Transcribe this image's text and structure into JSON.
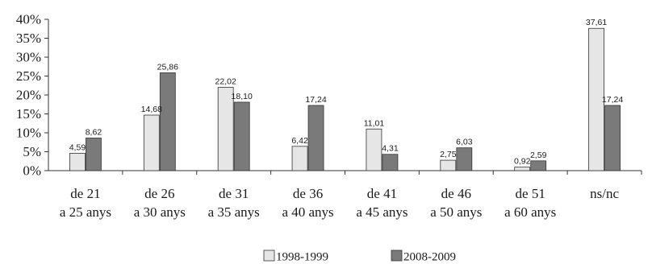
{
  "chart_data": {
    "type": "bar",
    "categories": [
      [
        "de 21",
        "a 25 anys"
      ],
      [
        "de 26",
        "a 30 anys"
      ],
      [
        "de 31",
        "a 35 anys"
      ],
      [
        "de 36",
        "a 40 anys"
      ],
      [
        "de 41",
        "a 45 anys"
      ],
      [
        "de 46",
        "a 50 anys"
      ],
      [
        "de 51",
        "a 60 anys"
      ],
      [
        "ns/nc"
      ]
    ],
    "series": [
      {
        "name": "1998-1999",
        "color": "#e6e6e6",
        "values": [
          4.59,
          14.68,
          22.02,
          6.42,
          11.01,
          2.75,
          0.92,
          37.61
        ],
        "labels": [
          "4,59",
          "14,68",
          "22,02",
          "6,42",
          "11,01",
          "2,75",
          "0,92",
          "37,61"
        ]
      },
      {
        "name": "2008-2009",
        "color": "#7a7a7a",
        "values": [
          8.62,
          25.86,
          18.1,
          17.24,
          4.31,
          6.03,
          2.59,
          17.24
        ],
        "labels": [
          "8,62",
          "25,86",
          "18,10",
          "17,24",
          "4,31",
          "6,03",
          "2,59",
          "17,24"
        ]
      }
    ],
    "ylim": [
      0,
      40
    ],
    "yticks": [
      "0%",
      "5%",
      "10%",
      "15%",
      "20%",
      "25%",
      "30%",
      "35%",
      "40%"
    ],
    "grid": false,
    "legend_position": "bottom-center",
    "title": "",
    "xlabel": "",
    "ylabel": ""
  }
}
